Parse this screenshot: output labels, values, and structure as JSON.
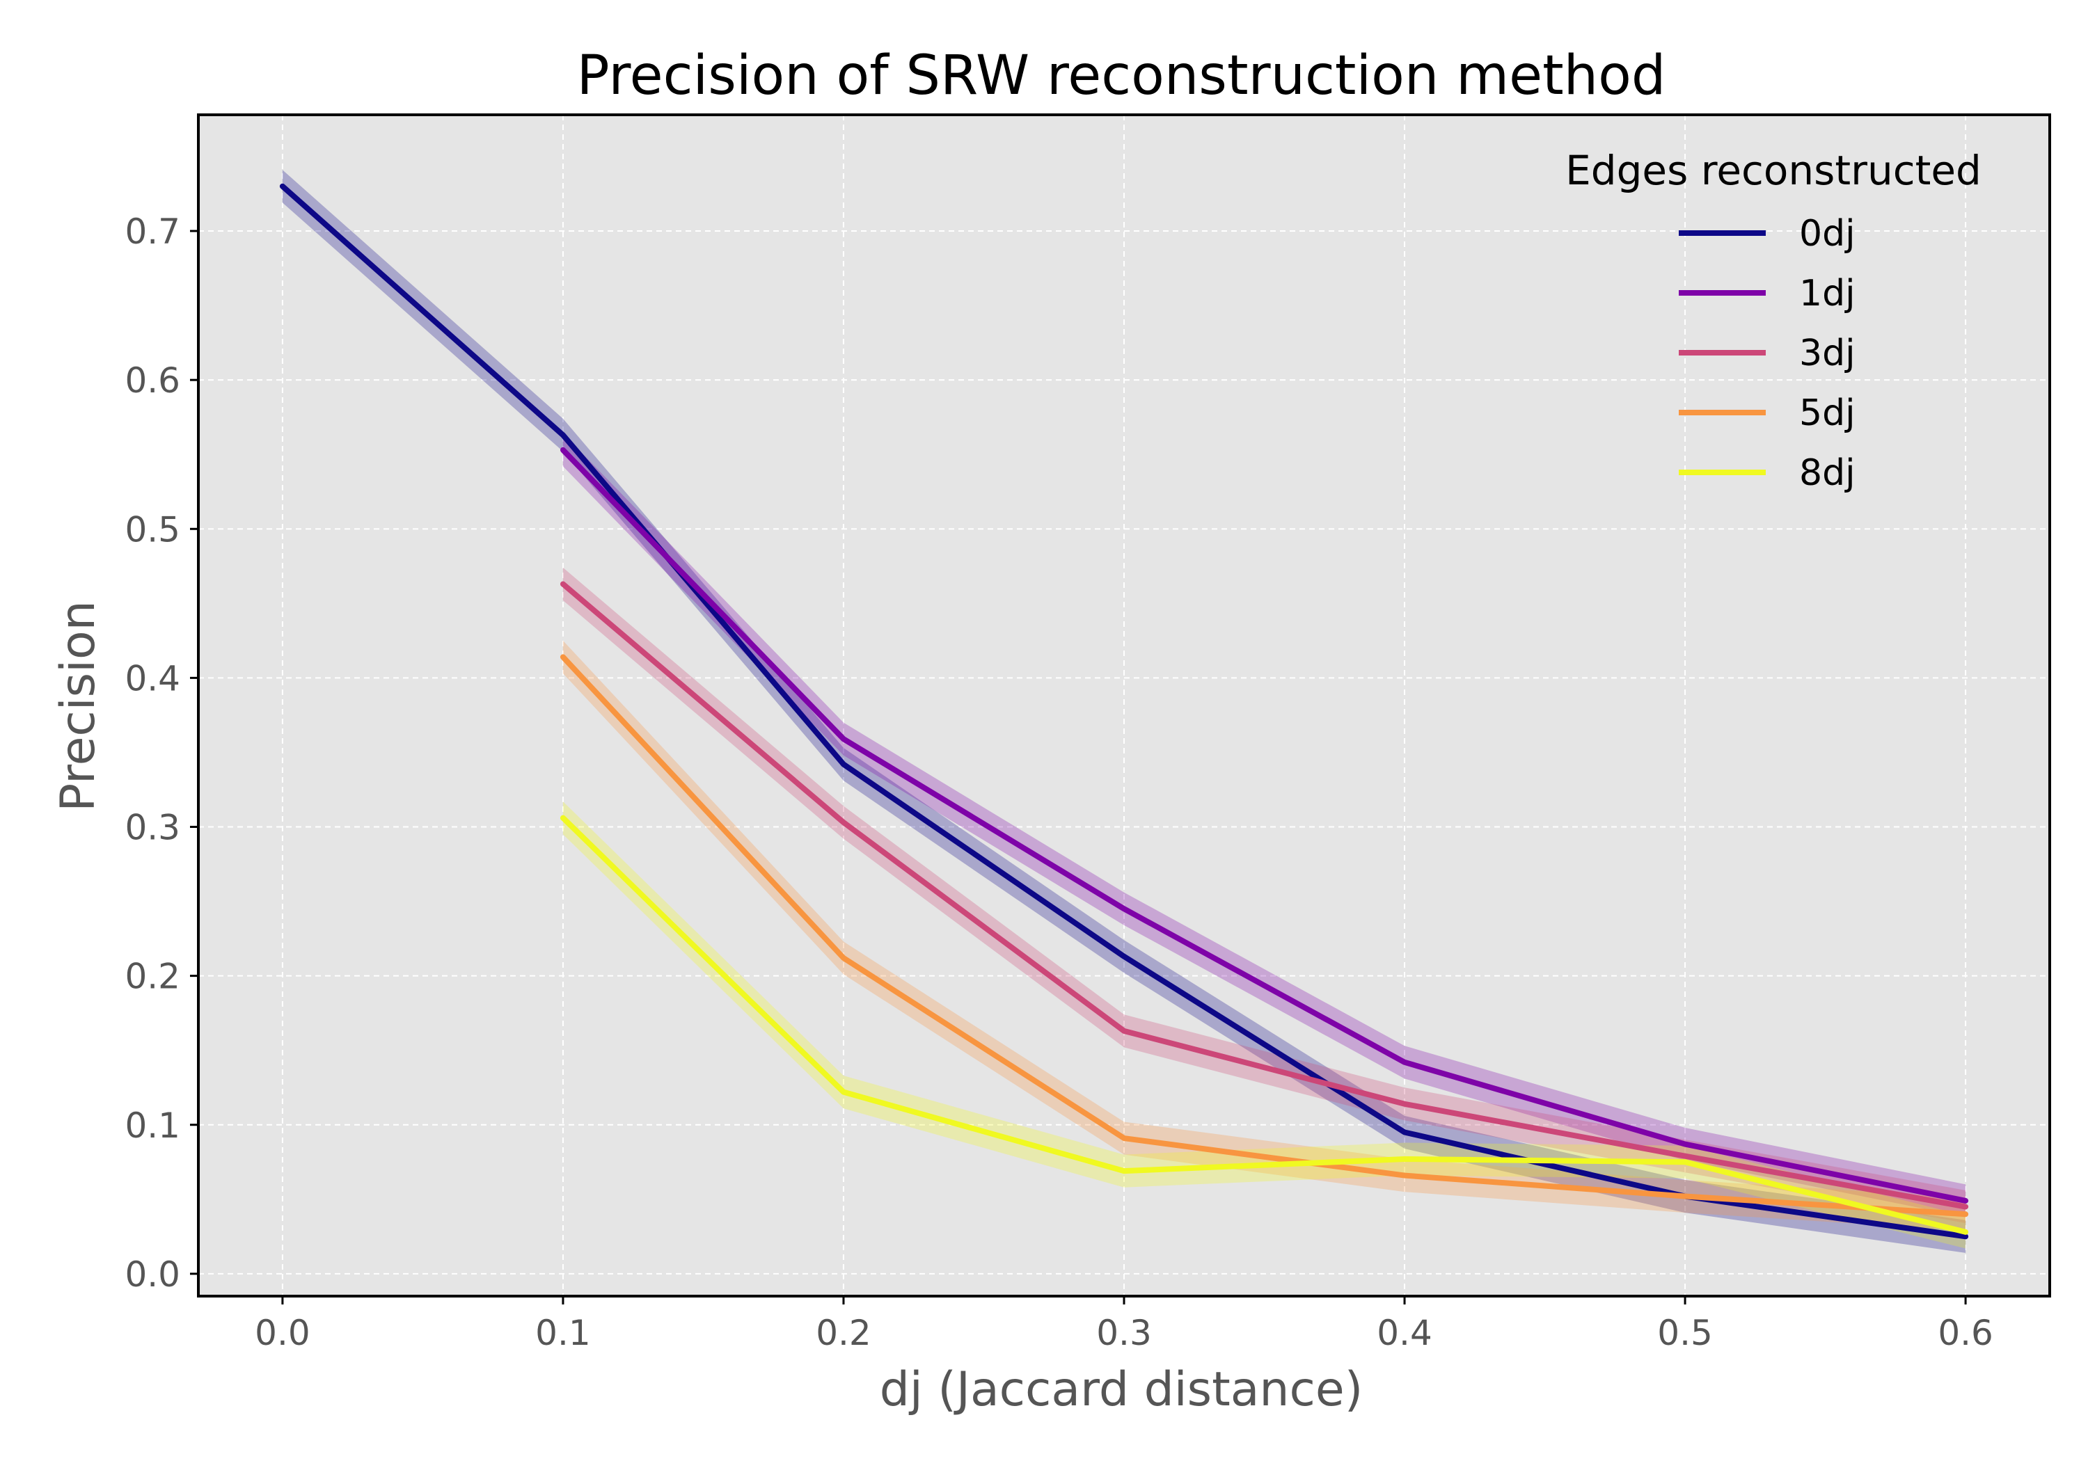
{
  "chart_data": {
    "type": "line",
    "title": "Precision of SRW reconstruction method",
    "xlabel": "dj (Jaccard distance)",
    "ylabel": "Precision",
    "xlim": [
      -0.03,
      0.63
    ],
    "ylim": [
      -0.015,
      0.778
    ],
    "xticks": [
      "0.0",
      "0.1",
      "0.2",
      "0.3",
      "0.4",
      "0.5",
      "0.6"
    ],
    "yticks": [
      "0.0",
      "0.1",
      "0.2",
      "0.3",
      "0.4",
      "0.5",
      "0.6",
      "0.7"
    ],
    "grid": true,
    "background": "#e5e5e5",
    "legend": {
      "title": "Edges reconstructed",
      "position": "top-right"
    },
    "band_halfwidth": 0.011,
    "series": [
      {
        "name": "0dj",
        "color": "#0d0887",
        "x": [
          0.0,
          0.1,
          0.2,
          0.3,
          0.4,
          0.5,
          0.6
        ],
        "y": [
          0.73,
          0.563,
          0.342,
          0.213,
          0.095,
          0.052,
          0.025
        ]
      },
      {
        "name": "1dj",
        "color": "#7e03a8",
        "x": [
          0.1,
          0.2,
          0.3,
          0.4,
          0.5,
          0.6
        ],
        "y": [
          0.553,
          0.359,
          0.245,
          0.142,
          0.087,
          0.049
        ]
      },
      {
        "name": "3dj",
        "color": "#cc4778",
        "x": [
          0.1,
          0.2,
          0.3,
          0.4,
          0.5,
          0.6
        ],
        "y": [
          0.463,
          0.303,
          0.163,
          0.114,
          0.079,
          0.045
        ]
      },
      {
        "name": "5dj",
        "color": "#f89540",
        "x": [
          0.1,
          0.2,
          0.3,
          0.4,
          0.5,
          0.6
        ],
        "y": [
          0.414,
          0.212,
          0.091,
          0.066,
          0.052,
          0.04
        ]
      },
      {
        "name": "8dj",
        "color": "#f0f921",
        "x": [
          0.1,
          0.2,
          0.3,
          0.4,
          0.5,
          0.6
        ],
        "y": [
          0.306,
          0.122,
          0.069,
          0.077,
          0.075,
          0.028
        ]
      }
    ]
  }
}
